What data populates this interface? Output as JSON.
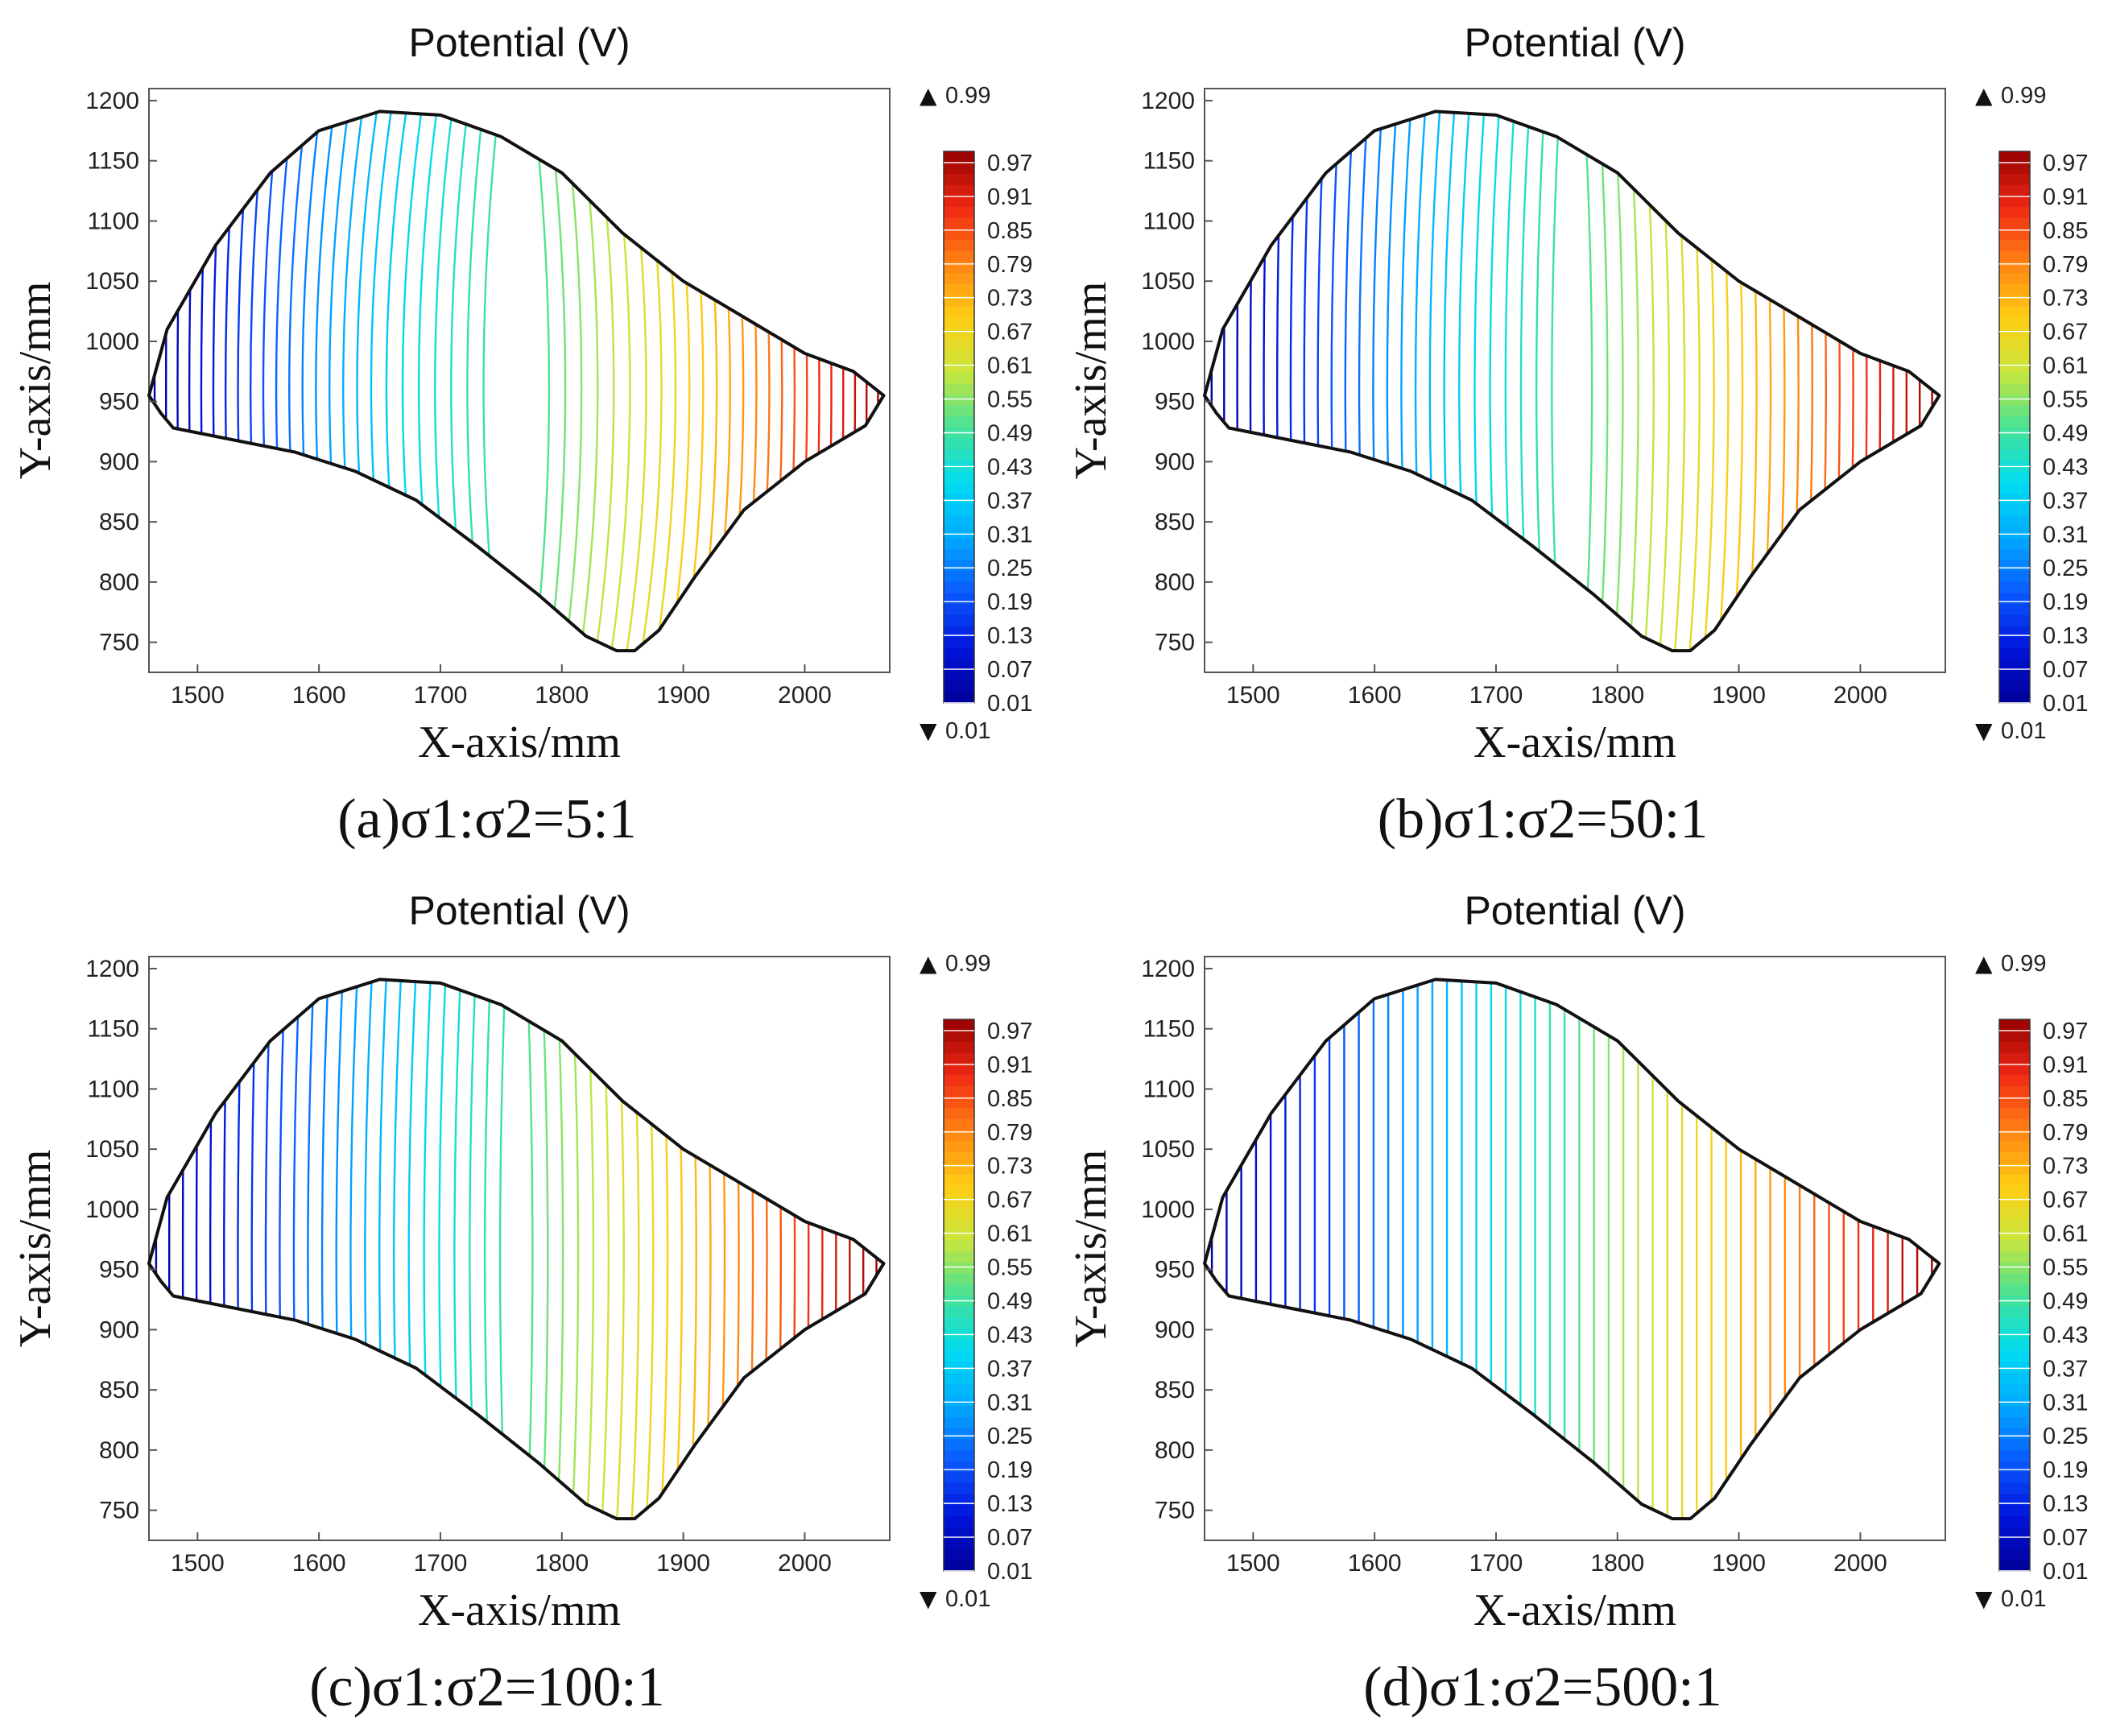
{
  "chart_data": [
    {
      "type": "contour",
      "panel": "a",
      "title": "Potential (V)",
      "xlabel": "X-axis/mm",
      "ylabel": "Y-axis/mm",
      "caption": "(a)σ1:σ2=5:1",
      "ratio": 5,
      "xlim": [
        1460,
        2070
      ],
      "ylim": [
        725,
        1210
      ],
      "xticks": [
        1500,
        1600,
        1700,
        1800,
        1900,
        2000
      ],
      "yticks": [
        750,
        800,
        850,
        900,
        950,
        1000,
        1050,
        1100,
        1150,
        1200
      ],
      "colorbar": {
        "max_label": "0.99",
        "min_label": "0.01",
        "ticks": [
          "0.97",
          "0.91",
          "0.85",
          "0.79",
          "0.73",
          "0.67",
          "0.61",
          "0.55",
          "0.49",
          "0.43",
          "0.37",
          "0.31",
          "0.25",
          "0.19",
          "0.13",
          "0.07",
          "0.01"
        ]
      },
      "contour_levels": {
        "min": 0.01,
        "max": 0.99,
        "count": 50
      },
      "boundary": [
        [
          1460,
          955
        ],
        [
          1475,
          1010
        ],
        [
          1515,
          1080
        ],
        [
          1560,
          1140
        ],
        [
          1600,
          1175
        ],
        [
          1650,
          1191
        ],
        [
          1700,
          1188
        ],
        [
          1750,
          1170
        ],
        [
          1800,
          1140
        ],
        [
          1850,
          1090
        ],
        [
          1900,
          1050
        ],
        [
          1950,
          1020
        ],
        [
          2000,
          990
        ],
        [
          2040,
          975
        ],
        [
          2065,
          955
        ],
        [
          2050,
          930
        ],
        [
          2000,
          900
        ],
        [
          1950,
          860
        ],
        [
          1910,
          805
        ],
        [
          1880,
          760
        ],
        [
          1860,
          743
        ],
        [
          1845,
          743
        ],
        [
          1820,
          755
        ],
        [
          1780,
          790
        ],
        [
          1730,
          830
        ],
        [
          1680,
          868
        ],
        [
          1630,
          892
        ],
        [
          1580,
          908
        ],
        [
          1520,
          920
        ],
        [
          1480,
          928
        ],
        [
          1470,
          940
        ]
      ]
    },
    {
      "type": "contour",
      "panel": "b",
      "title": "Potential (V)",
      "xlabel": "X-axis/mm",
      "ylabel": "Y-axis/mm",
      "caption": "(b)σ1:σ2=50:1",
      "ratio": 50,
      "xlim": [
        1460,
        2070
      ],
      "ylim": [
        725,
        1210
      ],
      "xticks": [
        1500,
        1600,
        1700,
        1800,
        1900,
        2000
      ],
      "yticks": [
        750,
        800,
        850,
        900,
        950,
        1000,
        1050,
        1100,
        1150,
        1200
      ],
      "colorbar": {
        "max_label": "0.99",
        "min_label": "0.01",
        "ticks": [
          "0.97",
          "0.91",
          "0.85",
          "0.79",
          "0.73",
          "0.67",
          "0.61",
          "0.55",
          "0.49",
          "0.43",
          "0.37",
          "0.31",
          "0.25",
          "0.19",
          "0.13",
          "0.07",
          "0.01"
        ]
      },
      "contour_levels": {
        "min": 0.01,
        "max": 0.99,
        "count": 50
      },
      "boundary": [
        [
          1460,
          955
        ],
        [
          1475,
          1010
        ],
        [
          1515,
          1080
        ],
        [
          1560,
          1140
        ],
        [
          1600,
          1175
        ],
        [
          1650,
          1191
        ],
        [
          1700,
          1188
        ],
        [
          1750,
          1170
        ],
        [
          1800,
          1140
        ],
        [
          1850,
          1090
        ],
        [
          1900,
          1050
        ],
        [
          1950,
          1020
        ],
        [
          2000,
          990
        ],
        [
          2040,
          975
        ],
        [
          2065,
          955
        ],
        [
          2050,
          930
        ],
        [
          2000,
          900
        ],
        [
          1950,
          860
        ],
        [
          1910,
          805
        ],
        [
          1880,
          760
        ],
        [
          1860,
          743
        ],
        [
          1845,
          743
        ],
        [
          1820,
          755
        ],
        [
          1780,
          790
        ],
        [
          1730,
          830
        ],
        [
          1680,
          868
        ],
        [
          1630,
          892
        ],
        [
          1580,
          908
        ],
        [
          1520,
          920
        ],
        [
          1480,
          928
        ],
        [
          1470,
          940
        ]
      ]
    },
    {
      "type": "contour",
      "panel": "c",
      "title": "Potential (V)",
      "xlabel": "X-axis/mm",
      "ylabel": "Y-axis/mm",
      "caption": "(c)σ1:σ2=100:1",
      "ratio": 100,
      "xlim": [
        1460,
        2070
      ],
      "ylim": [
        725,
        1210
      ],
      "xticks": [
        1500,
        1600,
        1700,
        1800,
        1900,
        2000
      ],
      "yticks": [
        750,
        800,
        850,
        900,
        950,
        1000,
        1050,
        1100,
        1150,
        1200
      ],
      "colorbar": {
        "max_label": "0.99",
        "min_label": "0.01",
        "ticks": [
          "0.97",
          "0.91",
          "0.85",
          "0.79",
          "0.73",
          "0.67",
          "0.61",
          "0.55",
          "0.49",
          "0.43",
          "0.37",
          "0.31",
          "0.25",
          "0.19",
          "0.13",
          "0.07",
          "0.01"
        ]
      },
      "contour_levels": {
        "min": 0.01,
        "max": 0.99,
        "count": 50
      },
      "boundary": [
        [
          1460,
          955
        ],
        [
          1475,
          1010
        ],
        [
          1515,
          1080
        ],
        [
          1560,
          1140
        ],
        [
          1600,
          1175
        ],
        [
          1650,
          1191
        ],
        [
          1700,
          1188
        ],
        [
          1750,
          1170
        ],
        [
          1800,
          1140
        ],
        [
          1850,
          1090
        ],
        [
          1900,
          1050
        ],
        [
          1950,
          1020
        ],
        [
          2000,
          990
        ],
        [
          2040,
          975
        ],
        [
          2065,
          955
        ],
        [
          2050,
          930
        ],
        [
          2000,
          900
        ],
        [
          1950,
          860
        ],
        [
          1910,
          805
        ],
        [
          1880,
          760
        ],
        [
          1860,
          743
        ],
        [
          1845,
          743
        ],
        [
          1820,
          755
        ],
        [
          1780,
          790
        ],
        [
          1730,
          830
        ],
        [
          1680,
          868
        ],
        [
          1630,
          892
        ],
        [
          1580,
          908
        ],
        [
          1520,
          920
        ],
        [
          1480,
          928
        ],
        [
          1470,
          940
        ]
      ]
    },
    {
      "type": "contour",
      "panel": "d",
      "title": "Potential (V)",
      "xlabel": "X-axis/mm",
      "ylabel": "Y-axis/mm",
      "caption": "(d)σ1:σ2=500:1",
      "ratio": 500,
      "xlim": [
        1460,
        2070
      ],
      "ylim": [
        725,
        1210
      ],
      "xticks": [
        1500,
        1600,
        1700,
        1800,
        1900,
        2000
      ],
      "yticks": [
        750,
        800,
        850,
        900,
        950,
        1000,
        1050,
        1100,
        1150,
        1200
      ],
      "colorbar": {
        "max_label": "0.99",
        "min_label": "0.01",
        "ticks": [
          "0.97",
          "0.91",
          "0.85",
          "0.79",
          "0.73",
          "0.67",
          "0.61",
          "0.55",
          "0.49",
          "0.43",
          "0.37",
          "0.31",
          "0.25",
          "0.19",
          "0.13",
          "0.07",
          "0.01"
        ]
      },
      "contour_levels": {
        "min": 0.01,
        "max": 0.99,
        "count": 50
      },
      "boundary": [
        [
          1460,
          955
        ],
        [
          1475,
          1010
        ],
        [
          1515,
          1080
        ],
        [
          1560,
          1140
        ],
        [
          1600,
          1175
        ],
        [
          1650,
          1191
        ],
        [
          1700,
          1188
        ],
        [
          1750,
          1170
        ],
        [
          1800,
          1140
        ],
        [
          1850,
          1090
        ],
        [
          1900,
          1050
        ],
        [
          1950,
          1020
        ],
        [
          2000,
          990
        ],
        [
          2040,
          975
        ],
        [
          2065,
          955
        ],
        [
          2050,
          930
        ],
        [
          2000,
          900
        ],
        [
          1950,
          860
        ],
        [
          1910,
          805
        ],
        [
          1880,
          760
        ],
        [
          1860,
          743
        ],
        [
          1845,
          743
        ],
        [
          1820,
          755
        ],
        [
          1780,
          790
        ],
        [
          1730,
          830
        ],
        [
          1680,
          868
        ],
        [
          1630,
          892
        ],
        [
          1580,
          908
        ],
        [
          1520,
          920
        ],
        [
          1480,
          928
        ],
        [
          1470,
          940
        ]
      ]
    }
  ]
}
